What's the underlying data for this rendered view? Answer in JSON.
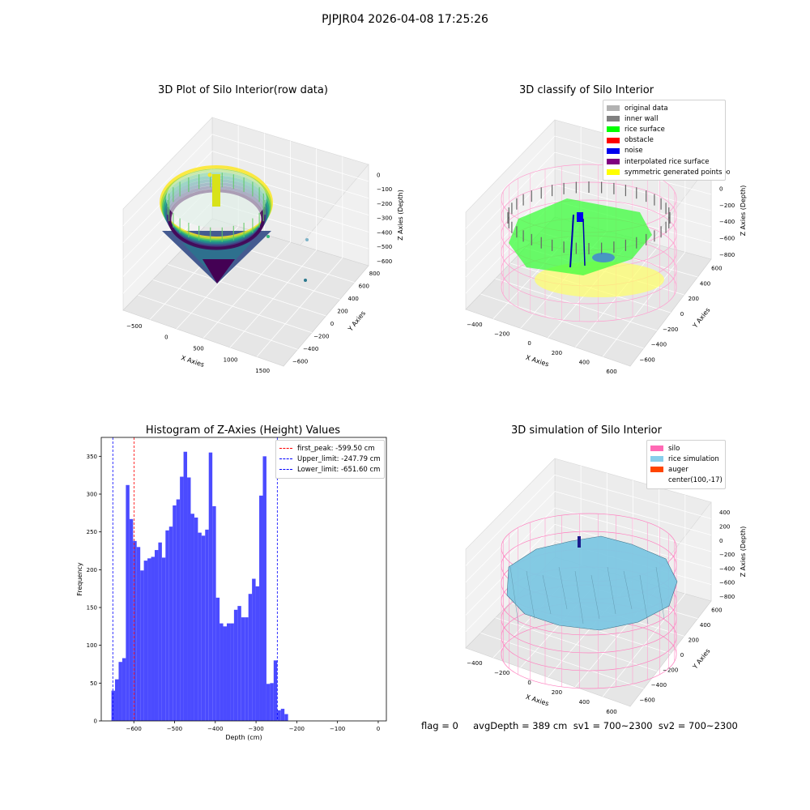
{
  "suptitle": "PJPJR04 2026-04-08 17:25:26",
  "panel1": {
    "title": "3D Plot of Silo Interior(row data)",
    "xlabel": "X Axies",
    "ylabel": "Y Axies",
    "zlabel": "Z Axies (Depth)",
    "xticks": [
      "−500",
      "0",
      "500",
      "1000",
      "1500"
    ],
    "yticks": [
      "800",
      "600",
      "400",
      "200",
      "0",
      "−200",
      "−400",
      "−600"
    ],
    "zticks": [
      "0",
      "−100",
      "−200",
      "−300",
      "−400",
      "−500",
      "−600"
    ]
  },
  "panel2": {
    "title": "3D classify of Silo Interior",
    "xlabel": "X Axies",
    "ylabel": "Y Axies",
    "zlabel": "Z Axies (Depth)",
    "xticks": [
      "−400",
      "−200",
      "0",
      "200",
      "400",
      "600"
    ],
    "yticks": [
      "600",
      "400",
      "200",
      "0",
      "−200",
      "−400",
      "−600"
    ],
    "zticks": [
      "200",
      "0",
      "−200",
      "−400",
      "−600",
      "−800"
    ],
    "legend": [
      {
        "label": "original data",
        "color": "#b2b2b2"
      },
      {
        "label": "inner wall",
        "color": "#808080"
      },
      {
        "label": "rice surface",
        "color": "#00ff00"
      },
      {
        "label": "obstacle",
        "color": "#ff0000"
      },
      {
        "label": "noise",
        "color": "#0000ee"
      },
      {
        "label": "interpolated rice surface",
        "color": "#800080"
      },
      {
        "label": "symmetric generated points",
        "color": "#ffff00"
      }
    ]
  },
  "panel3": {
    "title": "Histogram of Z-Axies (Height) Values",
    "legend": [
      {
        "label": "first_peak: -599.50 cm",
        "color": "#ff0000"
      },
      {
        "label": "Upper_limit: -247.79 cm",
        "color": "#0000ff"
      },
      {
        "label": "Lower_limit: -651.60 cm",
        "color": "#0000ff"
      }
    ]
  },
  "panel4": {
    "title": "3D simulation of Silo Interior",
    "xlabel": "X Axies",
    "ylabel": "Y Axies",
    "zlabel": "Z Axies (Depth)",
    "xticks": [
      "−400",
      "−200",
      "0",
      "200",
      "400",
      "600"
    ],
    "yticks": [
      "600",
      "400",
      "200",
      "0",
      "−200",
      "−400",
      "−600"
    ],
    "zticks": [
      "400",
      "200",
      "0",
      "−200",
      "−400",
      "−600",
      "−800"
    ],
    "legend": [
      {
        "label": "silo",
        "color": "#ff69b4"
      },
      {
        "label": "rice simulation",
        "color": "#87ceeb"
      },
      {
        "label": "auger",
        "color": "#ff4500"
      },
      {
        "label": "center(100,-17)",
        "color": ""
      }
    ]
  },
  "status_line": "flag = 0     avgDepth = 389 cm  sv1 = 700~2300  sv2 = 700~2300",
  "chart_data": [
    {
      "type": "scatter",
      "title": "3D Plot of Silo Interior(row data)",
      "xlabel": "X Axies",
      "ylabel": "Y Axies",
      "zlabel": "Z Axies (Depth)",
      "xlim": [
        -700,
        1700
      ],
      "ylim": [
        -700,
        900
      ],
      "zlim": [
        -700,
        50
      ],
      "colormap": "viridis"
    },
    {
      "type": "scatter",
      "title": "3D classify of Silo Interior",
      "xlabel": "X Axies",
      "ylabel": "Y Axies",
      "zlabel": "Z Axies (Depth)",
      "xlim": [
        -500,
        700
      ],
      "ylim": [
        -700,
        700
      ],
      "zlim": [
        -900,
        300
      ],
      "series": [
        {
          "name": "original data"
        },
        {
          "name": "inner wall"
        },
        {
          "name": "rice surface"
        },
        {
          "name": "obstacle"
        },
        {
          "name": "noise"
        },
        {
          "name": "interpolated rice surface"
        },
        {
          "name": "symmetric generated points"
        }
      ],
      "legend_position": "top-right"
    },
    {
      "type": "bar",
      "title": "Histogram of Z-Axies (Height) Values",
      "xlabel": "Depth (cm)",
      "ylabel": "Frequency",
      "xlim": [
        -680,
        20
      ],
      "ylim": [
        0,
        375
      ],
      "xticks": [
        -600,
        -500,
        -400,
        -300,
        -200,
        -100,
        0
      ],
      "yticks": [
        0,
        50,
        100,
        150,
        200,
        250,
        300,
        350
      ],
      "bin_edges_start": -655,
      "bin_width": 8.85,
      "values": [
        40,
        55,
        78,
        83,
        312,
        267,
        238,
        230,
        199,
        212,
        215,
        217,
        226,
        236,
        216,
        252,
        257,
        285,
        293,
        323,
        356,
        322,
        274,
        269,
        249,
        245,
        253,
        355,
        284,
        163,
        129,
        125,
        129,
        129,
        147,
        152,
        137,
        137,
        168,
        188,
        178,
        298,
        350,
        49,
        50,
        80,
        14,
        16,
        9
      ],
      "vlines": [
        {
          "label": "first_peak: -599.50 cm",
          "x": -599.5,
          "color": "red"
        },
        {
          "label": "Upper_limit: -247.79 cm",
          "x": -247.79,
          "color": "blue"
        },
        {
          "label": "Lower_limit: -651.60 cm",
          "x": -651.6,
          "color": "blue"
        }
      ],
      "legend_position": "top-right"
    },
    {
      "type": "area",
      "title": "3D simulation of Silo Interior",
      "xlabel": "X Axies",
      "ylabel": "Y Axies",
      "zlabel": "Z Axies (Depth)",
      "xlim": [
        -500,
        700
      ],
      "ylim": [
        -700,
        700
      ],
      "zlim": [
        -900,
        450
      ],
      "series": [
        {
          "name": "silo"
        },
        {
          "name": "rice simulation"
        },
        {
          "name": "auger"
        },
        {
          "name": "center(100,-17)"
        }
      ],
      "legend_position": "top-right"
    }
  ]
}
